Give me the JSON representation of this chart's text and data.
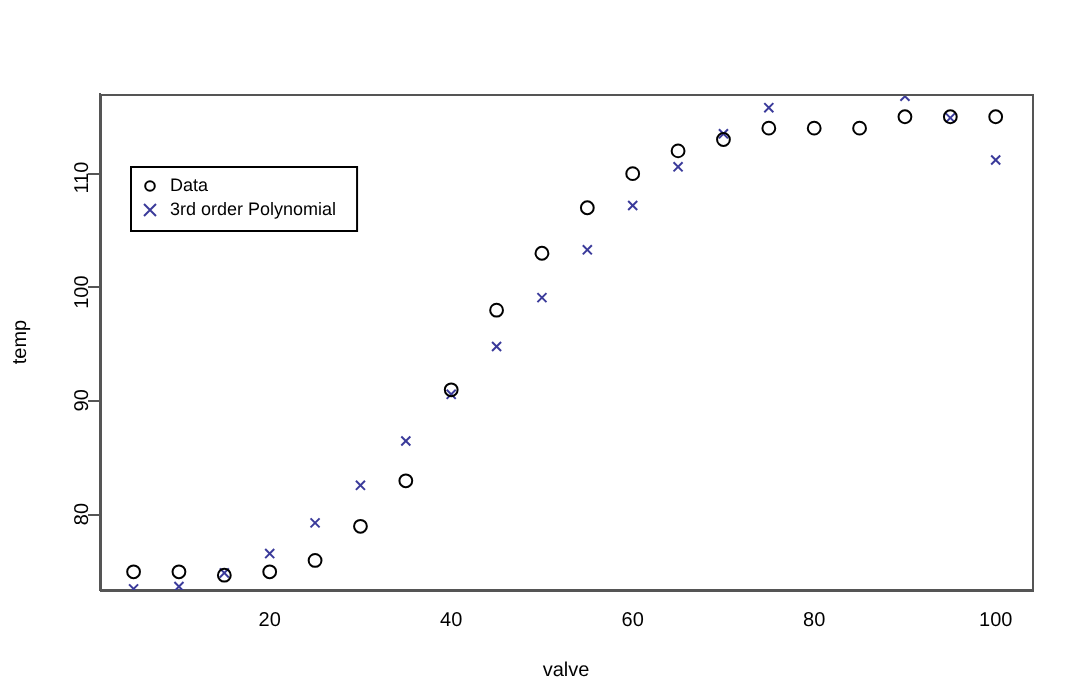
{
  "chart_data": {
    "type": "scatter",
    "xlabel": "valve",
    "ylabel": "temp",
    "x": [
      5,
      10,
      15,
      20,
      25,
      30,
      35,
      40,
      45,
      50,
      55,
      60,
      65,
      70,
      75,
      80,
      85,
      90,
      95,
      100
    ],
    "series": [
      {
        "name": "Data",
        "color": "#000000",
        "marker": "circle",
        "values": [
          75,
          75,
          74.7,
          75,
          76,
          79,
          83,
          91,
          98,
          103,
          107,
          110,
          112,
          113,
          114,
          114,
          114,
          115,
          115,
          115
        ]
      },
      {
        "name": "3rd order Polynomial",
        "color": "#3a3a9a",
        "marker": "cross",
        "values": [
          73.5,
          73.7,
          74.9,
          76.6,
          79.3,
          82.6,
          86.5,
          90.6,
          94.8,
          99.1,
          103.3,
          107.2,
          110.6,
          113.5,
          115.8,
          null,
          null,
          116.8,
          114.9,
          111.2
        ]
      }
    ],
    "xlim": [
      1.3,
      104
    ],
    "ylim": [
      73.4,
      117
    ],
    "xticks": [
      20,
      40,
      60,
      80,
      100
    ],
    "yticks": [
      80,
      90,
      100,
      110
    ],
    "grid": false,
    "legend": "top left"
  }
}
